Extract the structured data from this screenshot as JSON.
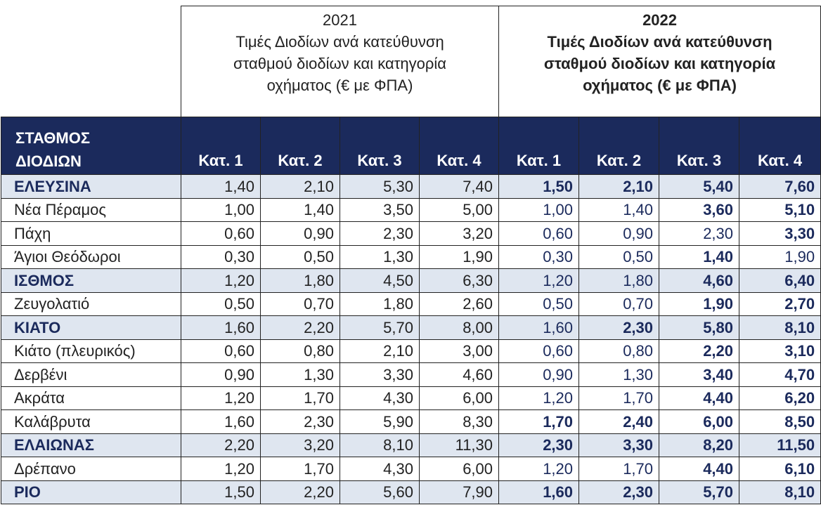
{
  "header": {
    "y2021": {
      "year": "2021",
      "lines": [
        "Τιμές Διοδίων ανά κατεύθυνση",
        "σταθμού διοδίων και κατηγορία",
        "οχήματος (€ με ΦΠΑ)"
      ]
    },
    "y2022": {
      "year": "2022",
      "lines": [
        "Τιμές Διοδίων ανά κατεύθυνση",
        "σταθμού διοδίων και κατηγορία",
        "οχήματος (€ με ΦΠΑ)"
      ]
    },
    "station_label": [
      "ΣΤΑΘΜΟΣ",
      "ΔΙΟΔΙΩΝ"
    ],
    "categories": [
      "Κατ. 1",
      "Κατ. 2",
      "Κατ. 3",
      "Κατ. 4"
    ]
  },
  "rows": [
    {
      "name": "ΕΛΕΥΣΙΝΑ",
      "main": true,
      "v2021": [
        "1,40",
        "2,10",
        "5,30",
        "7,40"
      ],
      "v2022": [
        "1,50",
        "2,10",
        "5,40",
        "7,60"
      ],
      "bold2022": [
        true,
        true,
        true,
        true
      ]
    },
    {
      "name": "Νέα Πέραμος",
      "main": false,
      "v2021": [
        "1,00",
        "1,40",
        "3,50",
        "5,00"
      ],
      "v2022": [
        "1,00",
        "1,40",
        "3,60",
        "5,10"
      ],
      "bold2022": [
        false,
        false,
        true,
        true
      ]
    },
    {
      "name": "Πάχη",
      "main": false,
      "v2021": [
        "0,60",
        "0,90",
        "2,30",
        "3,20"
      ],
      "v2022": [
        "0,60",
        "0,90",
        "2,30",
        "3,30"
      ],
      "bold2022": [
        false,
        false,
        false,
        true
      ]
    },
    {
      "name": "Άγιοι Θεόδωροι",
      "main": false,
      "v2021": [
        "0,30",
        "0,50",
        "1,30",
        "1,90"
      ],
      "v2022": [
        "0,30",
        "0,50",
        "1,40",
        "1,90"
      ],
      "bold2022": [
        false,
        false,
        true,
        false
      ]
    },
    {
      "name": "ΙΣΘΜΟΣ",
      "main": true,
      "v2021": [
        "1,20",
        "1,80",
        "4,50",
        "6,30"
      ],
      "v2022": [
        "1,20",
        "1,80",
        "4,60",
        "6,40"
      ],
      "bold2022": [
        false,
        false,
        true,
        true
      ]
    },
    {
      "name": "Ζευγολατιό",
      "main": false,
      "v2021": [
        "0,50",
        "0,70",
        "1,80",
        "2,60"
      ],
      "v2022": [
        "0,50",
        "0,70",
        "1,90",
        "2,70"
      ],
      "bold2022": [
        false,
        false,
        true,
        true
      ]
    },
    {
      "name": "ΚΙΑΤΟ",
      "main": true,
      "v2021": [
        "1,60",
        "2,20",
        "5,70",
        "8,00"
      ],
      "v2022": [
        "1,60",
        "2,30",
        "5,80",
        "8,10"
      ],
      "bold2022": [
        false,
        true,
        true,
        true
      ]
    },
    {
      "name": "Κιάτο (πλευρικός)",
      "main": false,
      "v2021": [
        "0,60",
        "0,80",
        "2,10",
        "3,00"
      ],
      "v2022": [
        "0,60",
        "0,80",
        "2,20",
        "3,10"
      ],
      "bold2022": [
        false,
        false,
        true,
        true
      ]
    },
    {
      "name": "Δερβένι",
      "main": false,
      "v2021": [
        "0,90",
        "1,30",
        "3,30",
        "4,60"
      ],
      "v2022": [
        "0,90",
        "1,30",
        "3,40",
        "4,70"
      ],
      "bold2022": [
        false,
        false,
        true,
        true
      ]
    },
    {
      "name": "Ακράτα",
      "main": false,
      "v2021": [
        "1,20",
        "1,70",
        "4,30",
        "6,00"
      ],
      "v2022": [
        "1,20",
        "1,70",
        "4,40",
        "6,20"
      ],
      "bold2022": [
        false,
        false,
        true,
        true
      ]
    },
    {
      "name": "Καλάβρυτα",
      "main": false,
      "v2021": [
        "1,60",
        "2,30",
        "5,90",
        "8,30"
      ],
      "v2022": [
        "1,70",
        "2,40",
        "6,00",
        "8,50"
      ],
      "bold2022": [
        true,
        true,
        true,
        true
      ]
    },
    {
      "name": "ΕΛΑΙΩΝΑΣ",
      "main": true,
      "v2021": [
        "2,20",
        "3,20",
        "8,10",
        "11,30"
      ],
      "v2022": [
        "2,30",
        "3,30",
        "8,20",
        "11,50"
      ],
      "bold2022": [
        true,
        true,
        true,
        true
      ]
    },
    {
      "name": "Δρέπανο",
      "main": false,
      "v2021": [
        "1,20",
        "1,70",
        "4,30",
        "6,00"
      ],
      "v2022": [
        "1,20",
        "1,70",
        "4,40",
        "6,10"
      ],
      "bold2022": [
        false,
        false,
        true,
        true
      ]
    },
    {
      "name": "ΡΙΟ",
      "main": true,
      "v2021": [
        "1,50",
        "2,20",
        "5,60",
        "7,90"
      ],
      "v2022": [
        "1,60",
        "2,30",
        "5,70",
        "8,10"
      ],
      "bold2022": [
        true,
        true,
        true,
        true
      ]
    }
  ]
}
